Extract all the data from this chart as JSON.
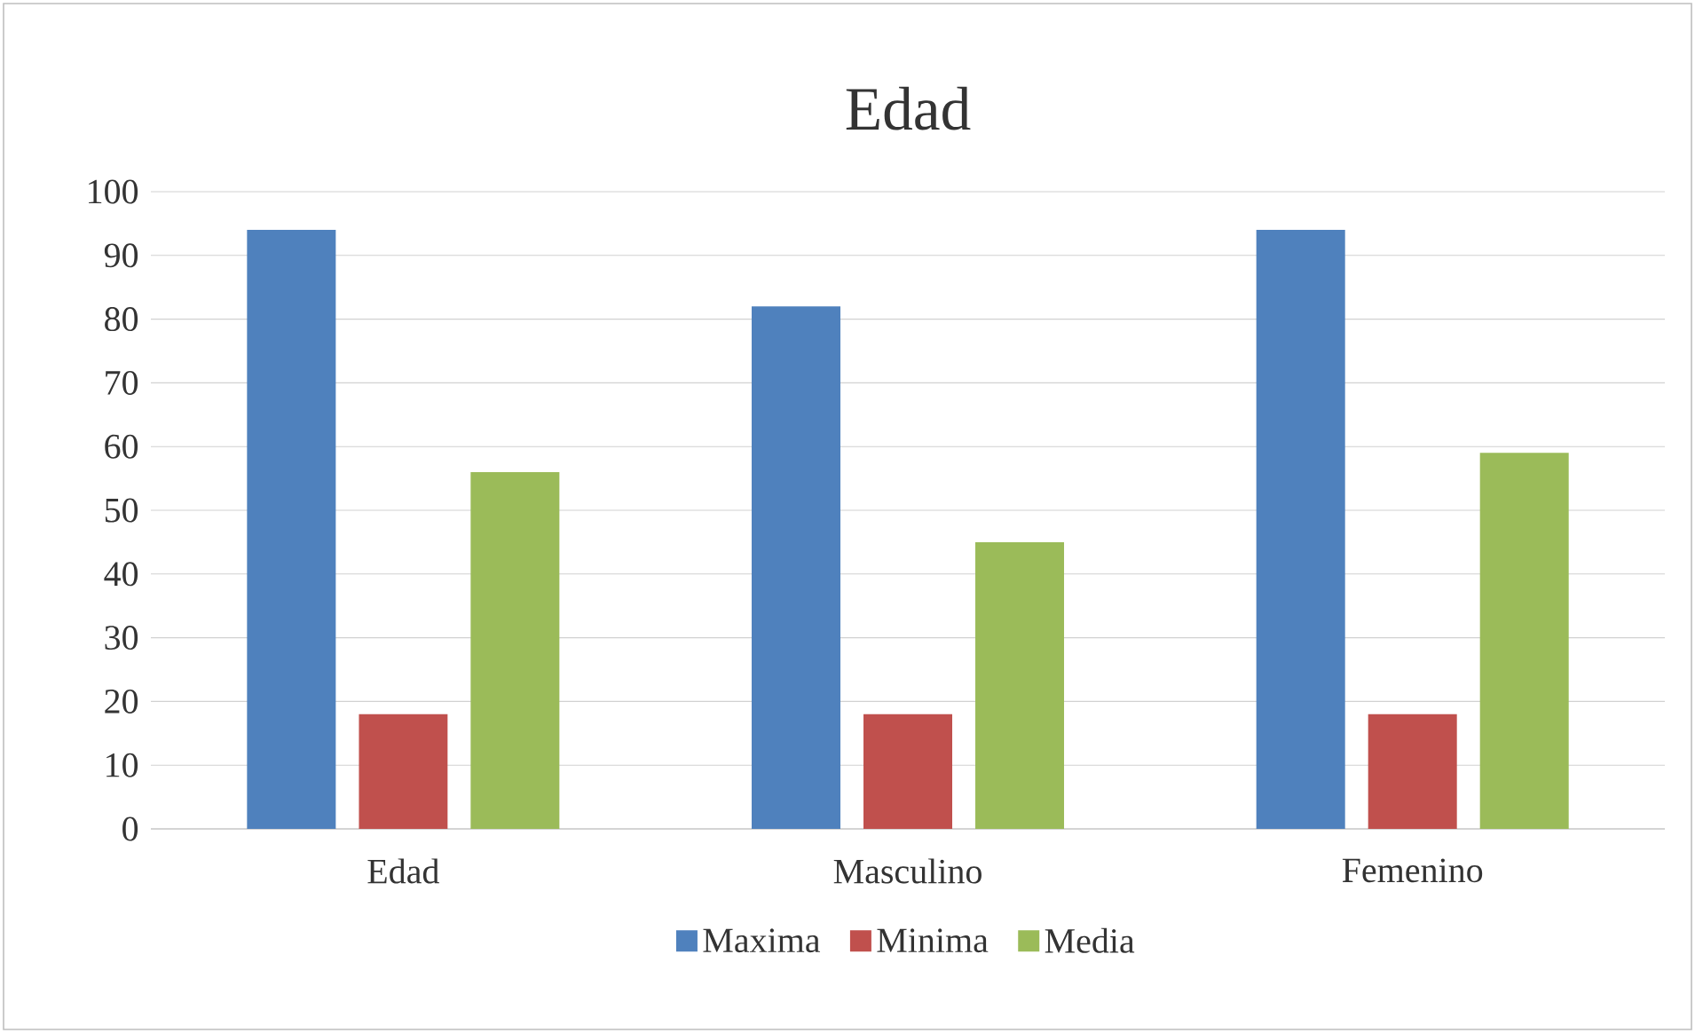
{
  "chart_data": {
    "type": "bar",
    "title": "Edad",
    "categories": [
      "Edad",
      "Masculino",
      "Femenino"
    ],
    "series": [
      {
        "name": "Maxima",
        "color": "#4f81bd",
        "values": [
          94,
          82,
          94
        ]
      },
      {
        "name": "Minima",
        "color": "#c0504d",
        "values": [
          18,
          18,
          18
        ]
      },
      {
        "name": "Media",
        "color": "#9bbb59",
        "values": [
          56,
          45,
          59
        ]
      }
    ],
    "ylim": [
      0,
      100
    ],
    "yticks": [
      0,
      10,
      20,
      30,
      40,
      50,
      60,
      70,
      80,
      90,
      100
    ],
    "grid": "y",
    "legend": "bottom"
  }
}
